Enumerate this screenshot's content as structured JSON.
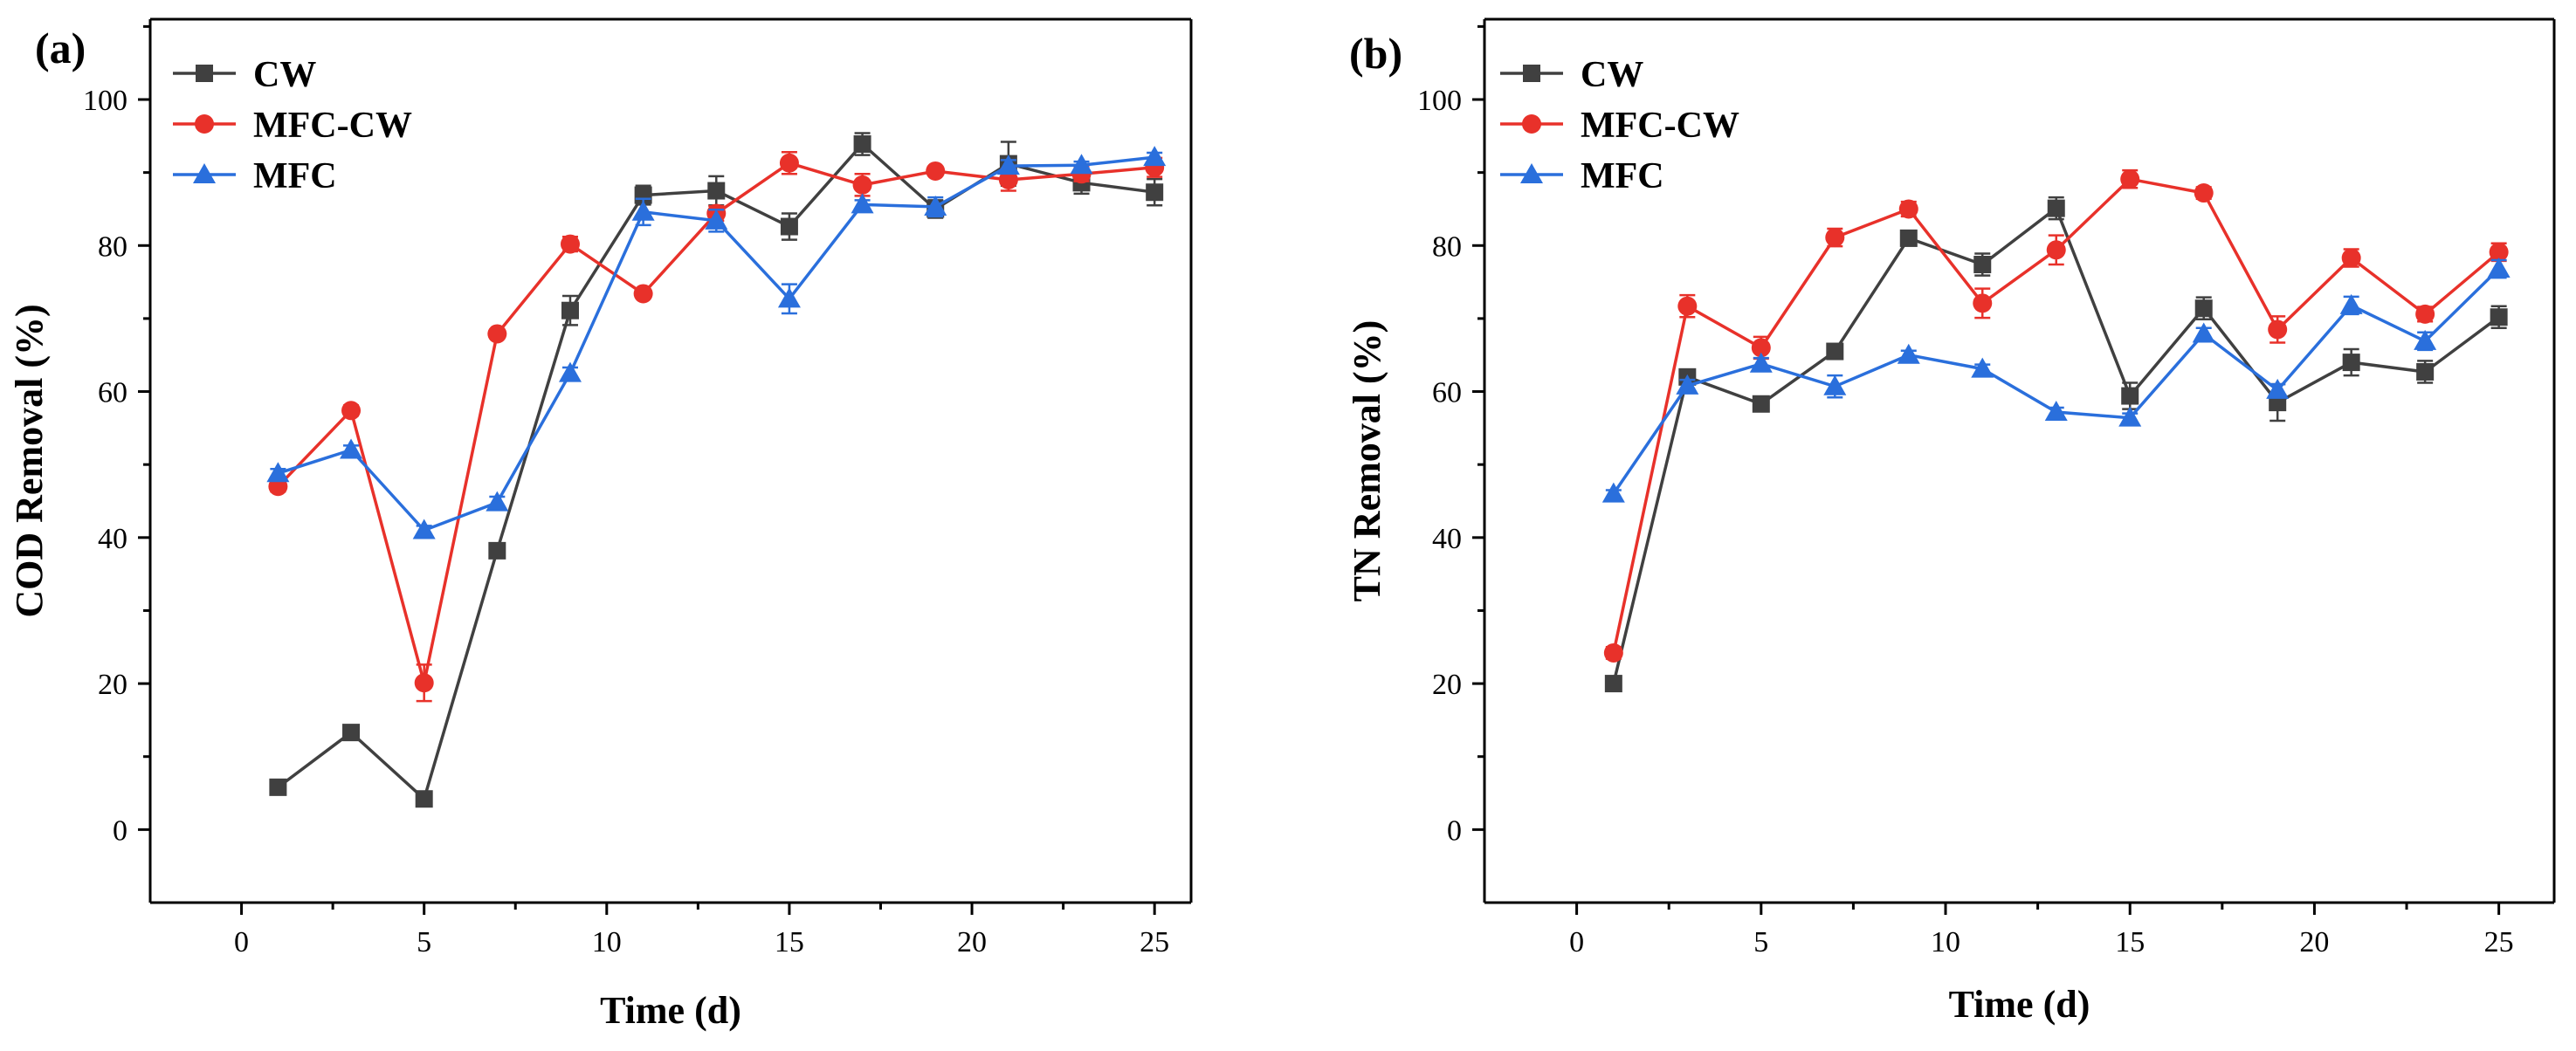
{
  "panels": [
    {
      "panel_label": "(a)",
      "chart_data": {
        "type": "line",
        "title": "",
        "xlabel": "Time (d)",
        "ylabel": "COD Removal (%)",
        "xlim": [
          -2.5,
          26
        ],
        "ylim": [
          -10,
          111
        ],
        "xticks": [
          0,
          5,
          10,
          15,
          20,
          25
        ],
        "yticks": [
          0,
          20,
          40,
          60,
          80,
          100
        ],
        "legend_position": "top-left",
        "x": [
          1,
          3,
          5,
          7,
          9,
          11,
          13,
          15,
          17,
          19,
          21,
          23,
          25
        ],
        "series": [
          {
            "name": "CW",
            "color": "#404040",
            "marker": "square",
            "values": [
              5.8,
              13.3,
              4.2,
              38.2,
              71.1,
              86.9,
              87.5,
              82.6,
              93.9,
              85.0,
              91.2,
              88.6,
              87.3
            ],
            "errors": [
              0.5,
              0.5,
              0.5,
              0.8,
              2.0,
              1.3,
              2.0,
              1.8,
              1.5,
              1.2,
              3.0,
              1.5,
              1.8
            ]
          },
          {
            "name": "MFC-CW",
            "color": "#e8312a",
            "marker": "circle",
            "values": [
              47.0,
              57.4,
              20.1,
              67.9,
              80.2,
              73.4,
              84.4,
              91.3,
              88.3,
              90.2,
              89.0,
              89.8,
              90.7
            ],
            "errors": [
              0.7,
              0.7,
              2.5,
              0.6,
              1.0,
              0.6,
              1.0,
              1.5,
              1.5,
              0.6,
              1.5,
              1.0,
              1.3
            ]
          },
          {
            "name": "MFC",
            "color": "#2a6fdc",
            "marker": "triangle",
            "values": [
              48.8,
              52.0,
              41.0,
              44.8,
              62.5,
              84.6,
              83.4,
              72.7,
              85.6,
              85.3,
              90.9,
              91.0,
              92.1
            ],
            "errors": [
              0.6,
              0.6,
              0.6,
              0.8,
              0.8,
              1.8,
              1.5,
              2.0,
              0.6,
              1.3,
              0.8,
              0.5,
              0.6
            ]
          }
        ]
      }
    },
    {
      "panel_label": "(b)",
      "chart_data": {
        "type": "line",
        "title": "",
        "xlabel": "Time (d)",
        "ylabel": "TN Removal (%)",
        "xlim": [
          -2.5,
          26.5
        ],
        "ylim": [
          -10,
          111
        ],
        "xticks": [
          0,
          5,
          10,
          15,
          20,
          25
        ],
        "yticks": [
          0,
          20,
          40,
          60,
          80,
          100
        ],
        "legend_position": "top-left",
        "x": [
          1,
          3,
          5,
          7,
          9,
          11,
          13,
          15,
          17,
          19,
          21,
          23,
          25
        ],
        "series": [
          {
            "name": "CW",
            "color": "#404040",
            "marker": "square",
            "values": [
              20.0,
              62.0,
              58.3,
              65.5,
              81.0,
              77.4,
              85.1,
              59.4,
              71.4,
              58.5,
              64.0,
              62.7,
              70.2
            ],
            "errors": [
              0.6,
              0.6,
              0.6,
              0.6,
              0.6,
              1.5,
              1.5,
              1.8,
              1.5,
              2.5,
              1.8,
              1.5,
              1.5
            ]
          },
          {
            "name": "MFC-CW",
            "color": "#e8312a",
            "marker": "circle",
            "values": [
              24.2,
              71.7,
              66.0,
              81.1,
              85.0,
              72.1,
              79.4,
              89.1,
              87.2,
              68.5,
              78.3,
              70.6,
              79.1
            ],
            "errors": [
              0.8,
              1.5,
              1.5,
              1.2,
              1.0,
              2.0,
              2.0,
              1.2,
              0.8,
              1.8,
              1.2,
              1.0,
              1.2
            ]
          },
          {
            "name": "MFC",
            "color": "#2a6fdc",
            "marker": "triangle",
            "values": [
              46.0,
              60.8,
              63.8,
              60.7,
              65.0,
              63.1,
              57.2,
              56.4,
              67.9,
              60.2,
              71.8,
              66.9,
              76.8
            ],
            "errors": [
              0.5,
              0.8,
              0.8,
              1.5,
              0.6,
              0.6,
              0.6,
              0.6,
              0.8,
              0.8,
              1.2,
              1.2,
              1.2
            ]
          }
        ]
      }
    }
  ]
}
